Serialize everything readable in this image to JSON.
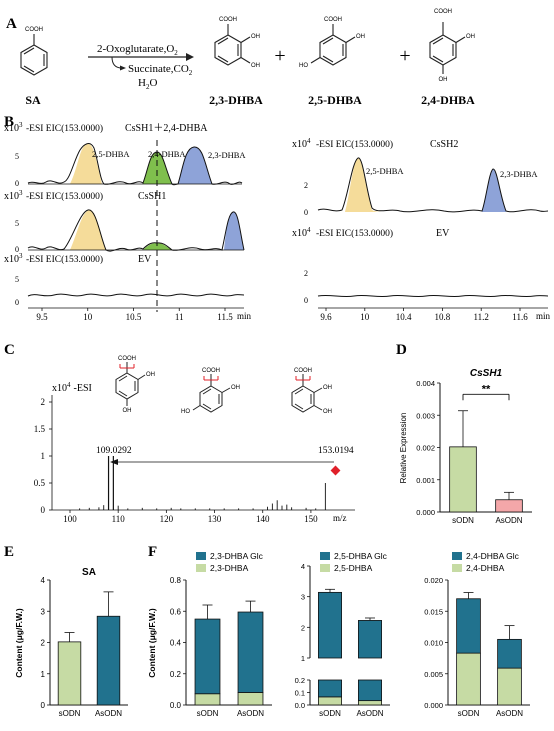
{
  "panel_labels": {
    "A": "A",
    "B": "B",
    "C": "C",
    "D": "D",
    "E": "E",
    "F": "F"
  },
  "panel_a": {
    "compounds": [
      "SA",
      "2,3-DHBA",
      "2,5-DHBA",
      "2,4-DHBA"
    ],
    "cooh": "COOH",
    "oh": "OH",
    "ho": "HO",
    "reagent_top": "2-Oxoglutarate,O",
    "reagent_top_sub": "2",
    "reagent_bottom": "Succinate,CO",
    "reagent_bottom_sub": "2",
    "water": "H",
    "water_sub": "2",
    "water_tail": "O",
    "plus": "+"
  },
  "panel_b": {
    "yscale_left": "x10",
    "yscale_left_exp": "3",
    "yscale_right": "x10",
    "yscale_right_exp": "4",
    "traces_left": [
      {
        "title": "-ESI EIC(153.0000)",
        "sample": "CsSH1＋2,4-DHBA",
        "peaks": [
          "2,5-DHBA",
          "2,4-DHBA",
          "2,3-DHBA"
        ]
      },
      {
        "title": "-ESI EIC(153.0000)",
        "sample": "CsSH1",
        "peaks": []
      },
      {
        "title": "-ESI EIC(153.0000)",
        "sample": "EV",
        "peaks": []
      }
    ],
    "traces_right": [
      {
        "title": "-ESI EIC(153.0000)",
        "sample": "CsSH2",
        "peaks": [
          "2,5-DHBA",
          "2,3-DHBA"
        ]
      },
      {
        "title": "-ESI EIC(153.0000)",
        "sample": "EV",
        "peaks": []
      }
    ],
    "y_ticks_left": [
      "5",
      "0"
    ],
    "y_ticks_right": [
      "2",
      "0"
    ],
    "x_ticks_left": [
      "9.5",
      "10",
      "10.5",
      "11",
      "11.5"
    ],
    "x_ticks_right": [
      "9.6",
      "10",
      "10.4",
      "10.8",
      "11.2",
      "11.6"
    ],
    "x_unit": "min",
    "colors": {
      "yellow": "#f5dc9a",
      "green": "#7fbf4d",
      "blue": "#8ea3d8"
    }
  },
  "panel_c": {
    "title": "x10",
    "title_exp": "4",
    "mode": "-ESI",
    "cooh": "COOH",
    "oh": "OH",
    "ho": "HO",
    "y_ticks": [
      "2",
      "1.5",
      "1",
      "0.5",
      "0"
    ],
    "x_ticks": [
      "100",
      "110",
      "120",
      "130",
      "140",
      "150"
    ],
    "x_unit": "m/z",
    "peak_labels": [
      "109.0292",
      "153.0194"
    ],
    "marker_color": "#e0202a"
  },
  "chart_data": [
    {
      "panel": "D",
      "type": "bar",
      "title": "CsSH1",
      "ylabel": "Relative Expression",
      "categories": [
        "sODN",
        "AsODN"
      ],
      "values": [
        0.00202,
        0.00038
      ],
      "errors": [
        0.00112,
        0.00023
      ],
      "ylim": [
        0,
        0.004
      ],
      "yticks": [
        "0.000",
        "0.001",
        "0.002",
        "0.003",
        "0.004"
      ],
      "colors": [
        "#c6dba4",
        "#f4a7a9"
      ],
      "significance": "**"
    },
    {
      "panel": "E",
      "type": "bar",
      "title": "SA",
      "ylabel": "Content (μg/F.W.)",
      "categories": [
        "sODN",
        "AsODN"
      ],
      "values": [
        2.02,
        2.84
      ],
      "errors": [
        0.3,
        0.78
      ],
      "ylim": [
        0,
        4
      ],
      "yticks": [
        "0",
        "1",
        "2",
        "3",
        "4"
      ],
      "colors": [
        "#c6dba4",
        "#21728e"
      ]
    },
    {
      "panel": "F1",
      "type": "bar",
      "stacked": true,
      "ylabel": "Content (μg/F.W.)",
      "categories": [
        "sODN",
        "AsODN"
      ],
      "series": [
        {
          "name": "2,3-DHBA",
          "values": [
            0.072,
            0.08
          ],
          "errors": [
            0.008,
            0.01
          ]
        },
        {
          "name": "2,3-DHBA Glc",
          "values": [
            0.478,
            0.515
          ],
          "errors": [
            0.09,
            0.07
          ]
        }
      ],
      "ylim": [
        0,
        0.8
      ],
      "yticks": [
        "0.0",
        "0.2",
        "0.4",
        "0.6",
        "0.8"
      ],
      "colors": [
        "#c6dba4",
        "#21728e"
      ]
    },
    {
      "panel": "F2",
      "type": "bar",
      "stacked": true,
      "broken_axis": true,
      "categories": [
        "sODN",
        "AsODN"
      ],
      "series": [
        {
          "name": "2,5-DHBA",
          "values": [
            0.065,
            0.035
          ],
          "errors": [
            0.01,
            0.005
          ]
        },
        {
          "name": "2,5-DHBA Glc",
          "values": [
            3.075,
            2.19
          ],
          "errors": [
            0.1,
            0.08
          ]
        }
      ],
      "ylim": [
        0,
        4
      ],
      "yticks": [
        "0.0",
        "0.1",
        "0.2",
        "1",
        "2",
        "3",
        "4"
      ],
      "colors": [
        "#c6dba4",
        "#21728e"
      ]
    },
    {
      "panel": "F3",
      "type": "bar",
      "stacked": true,
      "categories": [
        "sODN",
        "AsODN"
      ],
      "series": [
        {
          "name": "2,4-DHBA",
          "values": [
            0.0083,
            0.0059
          ],
          "errors": [
            0.0008,
            0.0008
          ]
        },
        {
          "name": "2,4-DHBA Glc",
          "values": [
            0.0087,
            0.0046
          ],
          "errors": [
            0.001,
            0.0022
          ]
        }
      ],
      "ylim": [
        0,
        0.02
      ],
      "yticks": [
        "0.000",
        "0.005",
        "0.010",
        "0.015",
        "0.020"
      ],
      "colors": [
        "#c6dba4",
        "#21728e"
      ]
    }
  ]
}
